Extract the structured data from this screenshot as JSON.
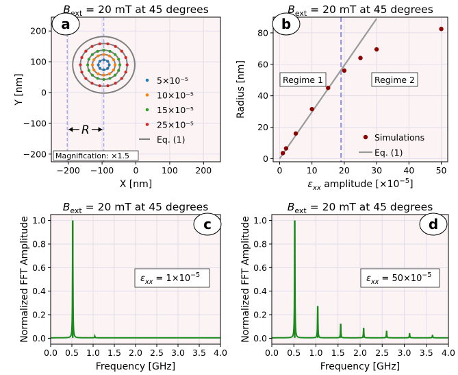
{
  "colors": {
    "panel_bg": "#fcf4f4",
    "grid": "#e0dcea",
    "circle": "#7f7f7f",
    "dashed": "#a9a9ee",
    "dashed_b": "#8c8ce6",
    "fft": "#1a8a1a",
    "sim": "#8b0000",
    "eq": "#9a9a9a"
  },
  "chart_data": [
    {
      "id": "a",
      "label": "a",
      "type": "scatter",
      "title": "B_ext = 20 mT at 45 degrees",
      "title_parts": {
        "b": "B",
        "sub": "ext",
        "rest": " = 20 mT at 45 degrees"
      },
      "xlabel": "X [nm]",
      "ylabel": "Y [nm]",
      "xlim": [
        -250,
        250
      ],
      "ylim": [
        -225,
        245
      ],
      "xticks": [
        -200,
        -100,
        0,
        100,
        200
      ],
      "yticks": [
        -200,
        -100,
        0,
        100,
        200
      ],
      "grid": true,
      "center": [
        -95,
        90
      ],
      "magnification": 1.5,
      "series": [
        {
          "name": "5×10⁻⁵",
          "color": "#1f77b4",
          "radius": 15,
          "n": 8
        },
        {
          "name": "10×10⁻⁵",
          "color": "#ff7f0e",
          "radius": 31,
          "n": 12
        },
        {
          "name": "15×10⁻⁵",
          "color": "#2ca02c",
          "radius": 44,
          "n": 16
        },
        {
          "name": "25×10⁻⁵",
          "color": "#d62728",
          "radius": 64,
          "n": 18
        }
      ],
      "circle_radii": [
        15,
        31,
        44,
        64,
        85
      ],
      "dashed_x": [
        -203,
        -95
      ],
      "annotation_R": "R",
      "legend_eq": "Eq. (1)",
      "magnification_text": "Magnification: ×1.5"
    },
    {
      "id": "b",
      "label": "b",
      "type": "scatter",
      "title": "B_ext = 20 mT at 45 degrees",
      "title_parts": {
        "b": "B",
        "sub": "ext",
        "rest": " = 20 mT at 45 degrees"
      },
      "xlabel_parts": {
        "pre": "ε",
        "sub": "xx",
        "mid": " amplitude [×10",
        "sup": "−5",
        "post": "]"
      },
      "ylabel": "Radius [nm]",
      "xlim": [
        -2,
        52
      ],
      "ylim": [
        -2,
        90
      ],
      "xticks": [
        0,
        10,
        20,
        30,
        40,
        50
      ],
      "yticks": [
        0,
        20,
        40,
        60,
        80
      ],
      "grid": true,
      "simulations": {
        "name": "Simulations",
        "x": [
          1,
          2,
          5,
          10,
          15,
          20,
          25,
          30,
          50
        ],
        "y": [
          3.5,
          6.5,
          16,
          31.5,
          45,
          56,
          64,
          69.5,
          82.5
        ]
      },
      "eq_line": {
        "name": "Eq. (1)",
        "x": [
          0,
          30
        ],
        "y": [
          0,
          89
        ]
      },
      "vline_x": 19,
      "regime1": "Regime 1",
      "regime2": "Regime 2"
    },
    {
      "id": "c",
      "label": "c",
      "type": "line",
      "title": "B_ext = 20 mT at 45 degrees",
      "title_parts": {
        "b": "B",
        "sub": "ext",
        "rest": " = 20 mT at 45 degrees"
      },
      "xlabel": "Frequency [GHz]",
      "ylabel": "Normalized FFT Amplitude",
      "xlim": [
        0,
        4.0
      ],
      "ylim": [
        -0.05,
        1.05
      ],
      "xticks": [
        "0.0",
        "0.5",
        "1.0",
        "1.5",
        "2.0",
        "2.5",
        "3.0",
        "3.5",
        "4.0"
      ],
      "yticks": [
        "0.0",
        "0.2",
        "0.4",
        "0.6",
        "0.8",
        "1.0"
      ],
      "grid": true,
      "peaks": [
        {
          "f": 0.52,
          "a": 1.0
        },
        {
          "f": 1.04,
          "a": 0.015
        }
      ],
      "annotation_parts": {
        "pre": "ε",
        "sub": "xx",
        "mid": " = 1×10",
        "sup": "−5"
      }
    },
    {
      "id": "d",
      "label": "d",
      "type": "line",
      "title": "B_ext = 20 mT at 45 degrees",
      "title_parts": {
        "b": "B",
        "sub": "ext",
        "rest": " = 20 mT at 45 degrees"
      },
      "xlabel": "Frequency [GHz]",
      "ylabel": "Normalized FFT Amplitude",
      "xlim": [
        0,
        4.0
      ],
      "ylim": [
        -0.05,
        1.05
      ],
      "xticks": [
        "0.0",
        "0.5",
        "1.0",
        "1.5",
        "2.0",
        "2.5",
        "3.0",
        "3.5",
        "4.0"
      ],
      "yticks": [
        "0.0",
        "0.2",
        "0.4",
        "0.6",
        "0.8",
        "1.0"
      ],
      "grid": true,
      "peaks": [
        {
          "f": 0.52,
          "a": 1.0
        },
        {
          "f": 1.04,
          "a": 0.27
        },
        {
          "f": 1.56,
          "a": 0.12
        },
        {
          "f": 2.08,
          "a": 0.085
        },
        {
          "f": 2.6,
          "a": 0.06
        },
        {
          "f": 3.12,
          "a": 0.04
        },
        {
          "f": 3.64,
          "a": 0.025
        }
      ],
      "annotation_parts": {
        "pre": "ε",
        "sub": "xx",
        "mid": " = 50×10",
        "sup": "−5"
      }
    }
  ]
}
